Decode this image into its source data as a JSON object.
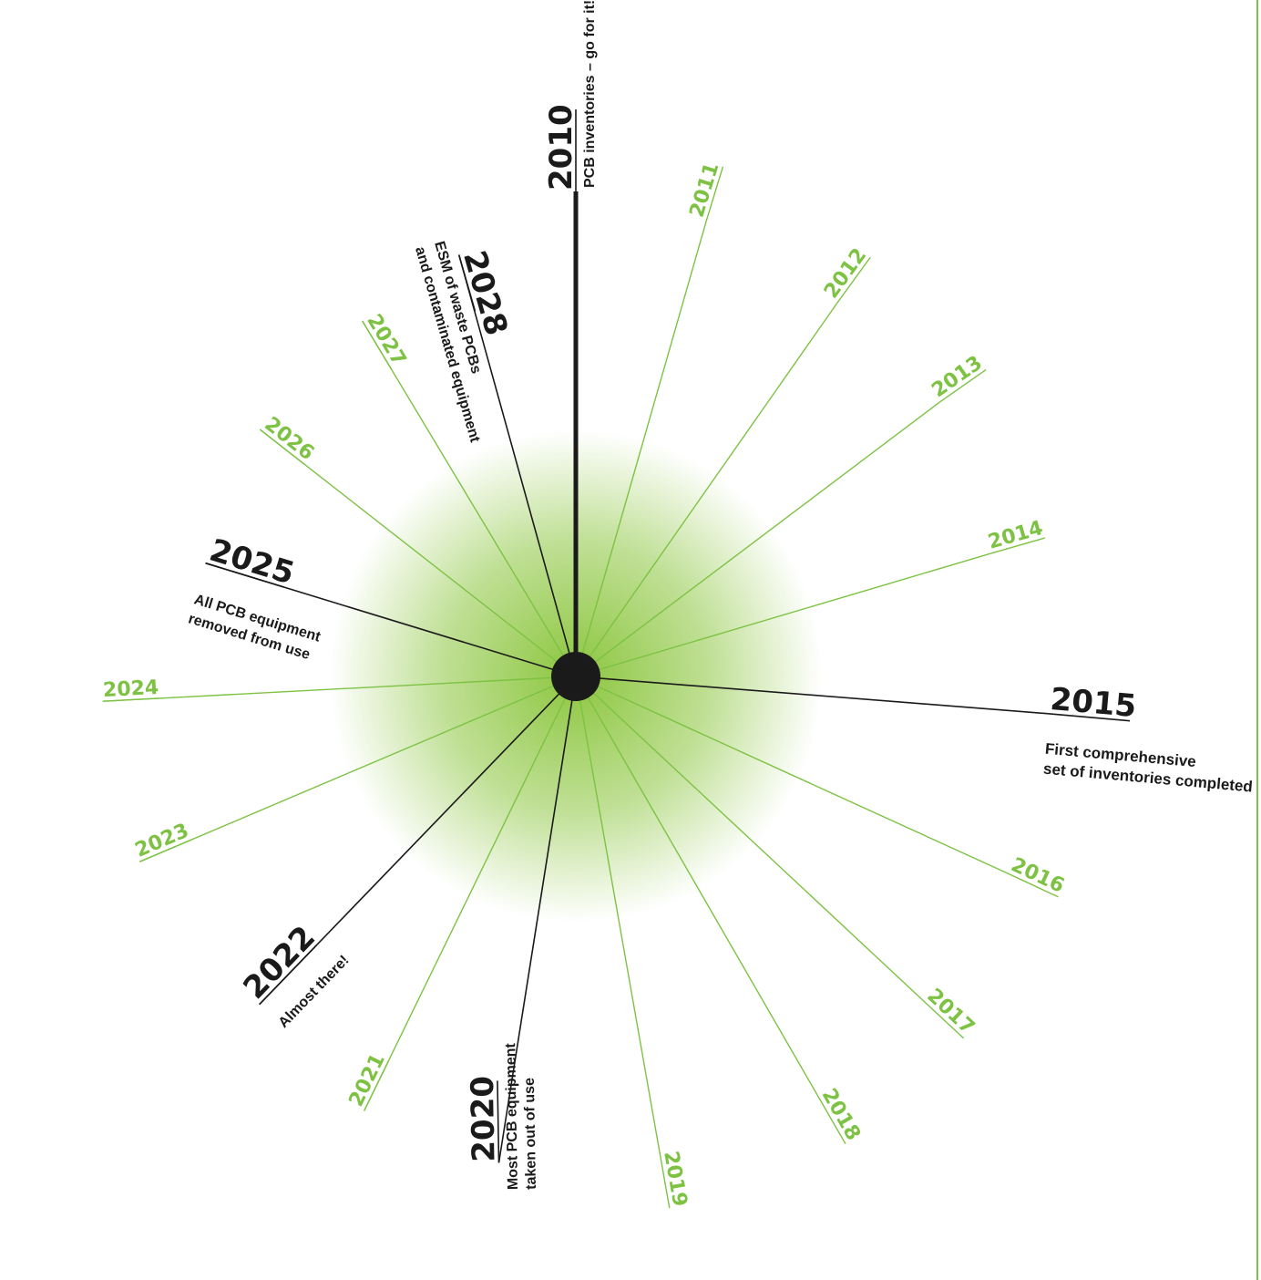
{
  "diagram": {
    "colors": {
      "accent": "#7dc243",
      "milestone": "#1a1a1a",
      "hub": "#1a1a1a",
      "glow": "#8cc63f"
    },
    "spokes": [
      {
        "year": "2010",
        "milestone": true,
        "lines": [
          "PCB inventories – go for it!"
        ]
      },
      {
        "year": "2011",
        "milestone": false,
        "lines": []
      },
      {
        "year": "2012",
        "milestone": false,
        "lines": []
      },
      {
        "year": "2013",
        "milestone": false,
        "lines": []
      },
      {
        "year": "2014",
        "milestone": false,
        "lines": []
      },
      {
        "year": "2015",
        "milestone": true,
        "lines": [
          "First comprehensive",
          "set of inventories completed"
        ]
      },
      {
        "year": "2016",
        "milestone": false,
        "lines": []
      },
      {
        "year": "2017",
        "milestone": false,
        "lines": []
      },
      {
        "year": "2018",
        "milestone": false,
        "lines": []
      },
      {
        "year": "2019",
        "milestone": false,
        "lines": []
      },
      {
        "year": "2020",
        "milestone": true,
        "lines": [
          "Most PCB equipment",
          "taken out of use"
        ]
      },
      {
        "year": "2021",
        "milestone": false,
        "lines": []
      },
      {
        "year": "2022",
        "milestone": true,
        "lines": [
          "Almost there!"
        ]
      },
      {
        "year": "2023",
        "milestone": false,
        "lines": []
      },
      {
        "year": "2024",
        "milestone": false,
        "lines": []
      },
      {
        "year": "2025",
        "milestone": true,
        "lines": [
          "All PCB equipment",
          "removed from use"
        ]
      },
      {
        "year": "2026",
        "milestone": false,
        "lines": []
      },
      {
        "year": "2027",
        "milestone": false,
        "lines": []
      },
      {
        "year": "2028",
        "milestone": true,
        "lines": [
          "ESM of waste PCBs",
          "and contaminated equipment"
        ]
      }
    ]
  }
}
